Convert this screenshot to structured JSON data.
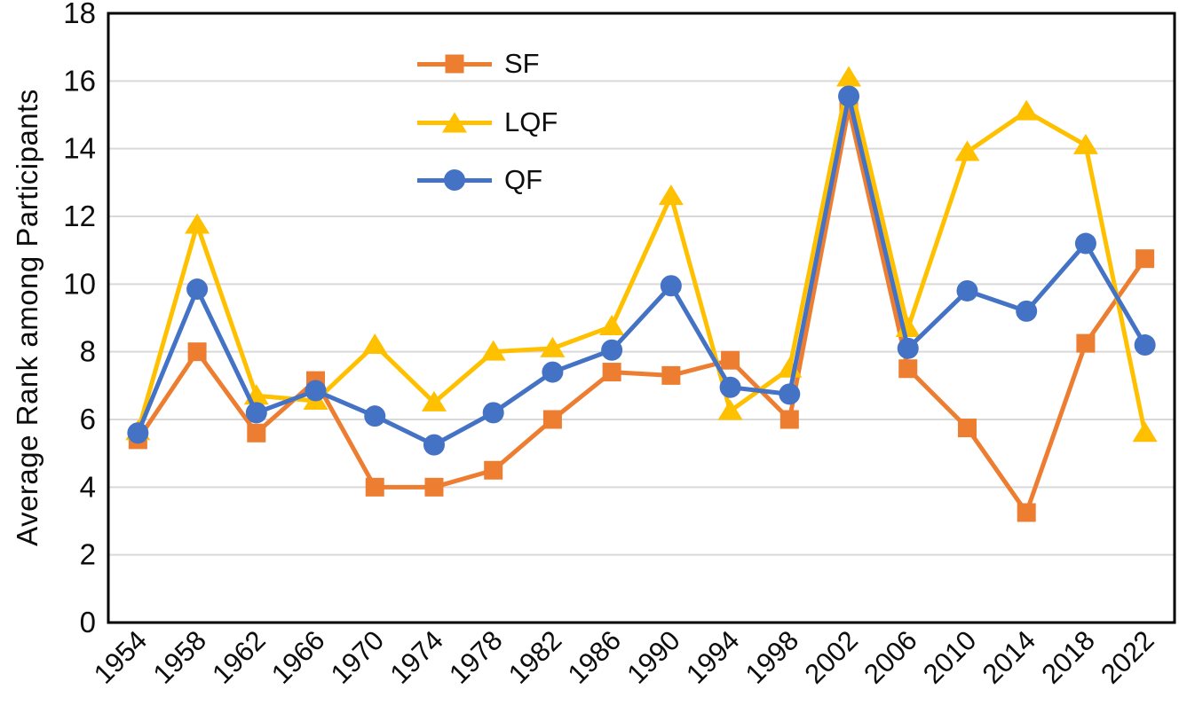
{
  "chart_data": {
    "type": "line",
    "title": "",
    "xlabel": "",
    "ylabel": "Average Rank among Participants",
    "ylim": [
      0,
      18
    ],
    "ytick_step": 2,
    "grid": "horizontal-only",
    "legend_position": "inside-top-center",
    "categories": [
      "1954",
      "1958",
      "1962",
      "1966",
      "1970",
      "1974",
      "1978",
      "1982",
      "1986",
      "1990",
      "1994",
      "1998",
      "2002",
      "2006",
      "2010",
      "2014",
      "2018",
      "2022"
    ],
    "series": [
      {
        "name": "SF",
        "color": "#ED7D31",
        "marker": "square",
        "values": [
          5.4,
          8.0,
          5.6,
          7.15,
          4.0,
          4.0,
          4.5,
          6.0,
          7.4,
          7.3,
          7.75,
          6.0,
          15.2,
          7.5,
          5.75,
          3.25,
          8.25,
          10.75
        ]
      },
      {
        "name": "LQF",
        "color": "#FFC000",
        "marker": "triangle",
        "values": [
          5.65,
          11.75,
          6.7,
          6.55,
          8.2,
          6.5,
          8.0,
          8.1,
          8.75,
          12.6,
          6.25,
          7.5,
          16.1,
          8.7,
          13.9,
          15.1,
          14.1,
          5.6
        ]
      },
      {
        "name": "QF",
        "color": "#4472C4",
        "marker": "circle",
        "values": [
          5.6,
          9.85,
          6.2,
          6.85,
          6.1,
          5.25,
          6.2,
          7.4,
          8.05,
          9.95,
          6.95,
          6.75,
          15.55,
          8.1,
          9.8,
          9.2,
          11.2,
          8.2
        ]
      }
    ]
  },
  "colors": {
    "gridline": "#D9D9D9",
    "axis_border": "#000000",
    "text": "#0D0D0D",
    "background": "#FFFFFF"
  }
}
